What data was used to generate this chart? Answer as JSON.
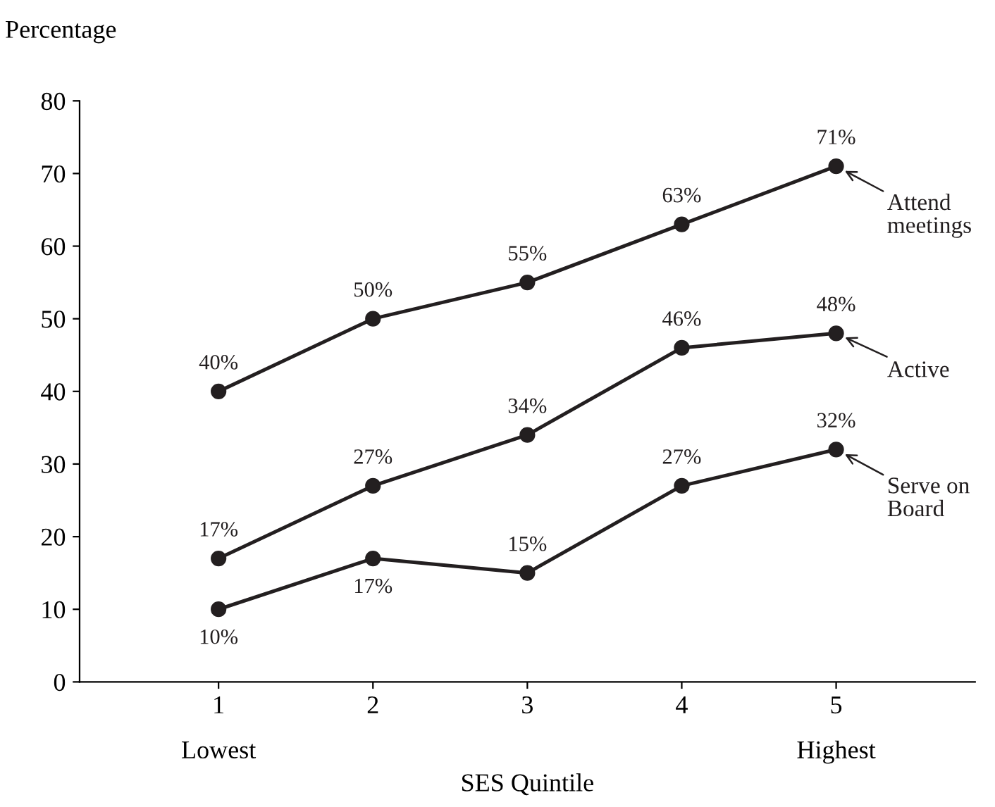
{
  "chart_data": {
    "type": "line",
    "ylabel": "Percentage",
    "xlabel": "SES Quintile",
    "x": [
      1,
      2,
      3,
      4,
      5
    ],
    "xlim": [
      0.1,
      5.9
    ],
    "xticks": [
      1,
      2,
      3,
      4,
      5
    ],
    "ylim": [
      0,
      80
    ],
    "yticks": [
      0,
      10,
      20,
      30,
      40,
      50,
      60,
      70,
      80
    ],
    "marker": "circle",
    "line_style": "solid",
    "grid": false,
    "legend": "right",
    "series": [
      {
        "name": "Attend meetings",
        "color": "#231f20",
        "values": [
          40,
          50,
          55,
          63,
          71
        ],
        "value_labels": [
          "40%",
          "50%",
          "55%",
          "63%",
          "71%"
        ]
      },
      {
        "name": "Active",
        "color": "#231f20",
        "values": [
          17,
          27,
          34,
          46,
          48
        ],
        "value_labels": [
          "17%",
          "27%",
          "34%",
          "46%",
          "48%"
        ]
      },
      {
        "name": "Serve on Board",
        "color": "#231f20",
        "values": [
          10,
          17,
          15,
          27,
          32
        ],
        "value_labels": [
          "10%",
          "17%",
          "15%",
          "27%",
          "32%"
        ]
      }
    ],
    "annotations": [
      "Lowest",
      "Highest"
    ]
  }
}
